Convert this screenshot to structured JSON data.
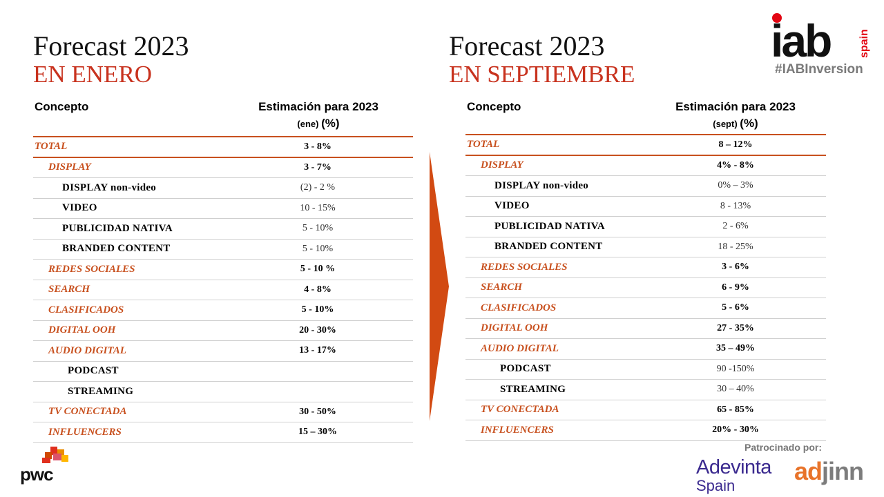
{
  "left": {
    "title": "Forecast 2023",
    "subtitle": "EN ENERO",
    "col_concept": "Concepto",
    "col_estimate": "Estimación para 2023",
    "col_estimate_sub": "(ene)",
    "col_estimate_pct": "(%)",
    "rows": [
      {
        "label": "TOTAL",
        "value": "3 - 8%"
      },
      {
        "label": "DISPLAY",
        "value": "3 - 7%"
      },
      {
        "label": "DISPLAY non-video",
        "value": "(2) - 2 %"
      },
      {
        "label": "VIDEO",
        "value": "10 - 15%"
      },
      {
        "label": "PUBLICIDAD NATIVA",
        "value": "5 - 10%"
      },
      {
        "label": "BRANDED  CONTENT",
        "value": "5 - 10%"
      },
      {
        "label": "REDES SOCIALES",
        "value": "5 - 10 %"
      },
      {
        "label": "SEARCH",
        "value": "4 - 8%"
      },
      {
        "label": "CLASIFICADOS",
        "value": "5 - 10%"
      },
      {
        "label": "DIGITAL OOH",
        "value": "20 - 30%"
      },
      {
        "label": "AUDIO DIGITAL",
        "value": "13 - 17%"
      },
      {
        "label": "PODCAST",
        "value": ""
      },
      {
        "label": "STREAMING",
        "value": ""
      },
      {
        "label": "TV CONECTADA",
        "value": "30 - 50%"
      },
      {
        "label": "INFLUENCERS",
        "value": "15 – 30%"
      }
    ]
  },
  "right": {
    "title": "Forecast 2023",
    "subtitle": "EN SEPTIEMBRE",
    "col_concept": "Concepto",
    "col_estimate": "Estimación para 2023",
    "col_estimate_sub": "(sept)",
    "col_estimate_pct": "(%)",
    "rows": [
      {
        "label": "TOTAL",
        "value": "8 – 12%"
      },
      {
        "label": "DISPLAY",
        "value": "4% - 8%"
      },
      {
        "label": "DISPLAY non-video",
        "value": "0% – 3%"
      },
      {
        "label": "VIDEO",
        "value": "8 - 13%"
      },
      {
        "label": "PUBLICIDAD  NATIVA",
        "value": "2 - 6%"
      },
      {
        "label": "BRANDED  CONTENT",
        "value": "18 - 25%"
      },
      {
        "label": "REDES SOCIALES",
        "value": "3 - 6%"
      },
      {
        "label": "SEARCH",
        "value": "6 - 9%"
      },
      {
        "label": "CLASIFICADOS",
        "value": "5 - 6%"
      },
      {
        "label": "DIGITAL OOH",
        "value": "27 - 35%"
      },
      {
        "label": "AUDIO DIGITAL",
        "value": "35 – 49%"
      },
      {
        "label": "PODCAST",
        "value": "90 -150%"
      },
      {
        "label": "STREAMING",
        "value": "30 – 40%"
      },
      {
        "label": "TV CONECTADA",
        "value": "65 - 85%"
      },
      {
        "label": "INFLUENCERS",
        "value": "20% - 30%"
      }
    ]
  },
  "branding": {
    "iab_logo_text": "iab",
    "iab_logo_country": "spain",
    "hashtag": "#IABInversion",
    "pwc": "pwc",
    "sponsor_label": "Patrocinado por:",
    "adevinta_line1": "Adevinta",
    "adevinta_line2": "Spain",
    "adjinn_ad": "ad",
    "adjinn_jinn": "jinn"
  },
  "colors": {
    "accent_red": "#c8321e",
    "accent_orange": "#c8501e",
    "arrow": "#d24a12",
    "iab_dot": "#e30613",
    "adevinta": "#3b2a8f",
    "adjinn_orange": "#e8732a"
  },
  "icons": {
    "arrow": "chevron-arrow-right-icon",
    "pwc_mark": "pwc-stacked-blocks-icon"
  }
}
